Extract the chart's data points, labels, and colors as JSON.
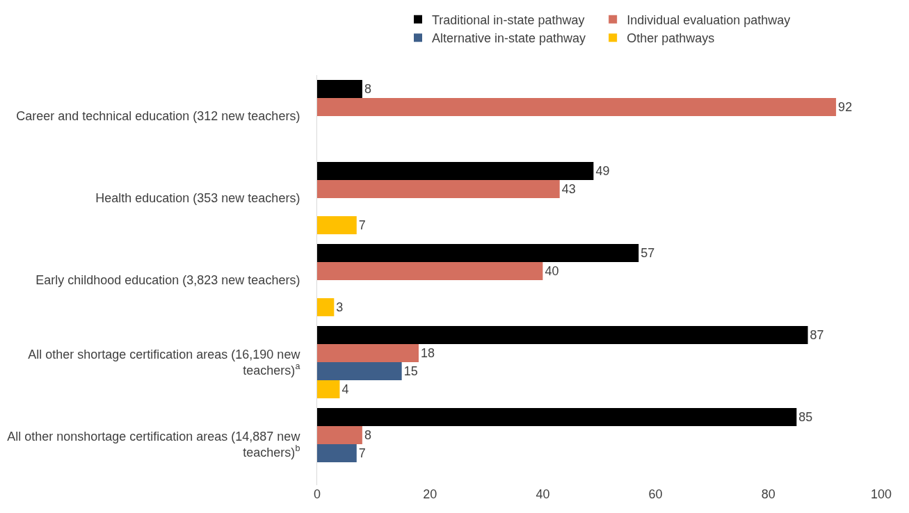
{
  "chart_data": {
    "type": "bar",
    "orientation": "horizontal",
    "categories": [
      "Career and technical education (312 new teachers)",
      "Health education (353 new teachers)",
      "Early childhood education (3,823 new teachers)",
      "All other shortage certification areas (16,190 new teachers)$^{a}$",
      "All other nonshortage certification areas (14,887 new teachers)$^{b}$"
    ],
    "series": [
      {
        "name": "Traditional in-state pathway",
        "color": "#000000",
        "values": [
          8,
          49,
          57,
          87,
          85
        ]
      },
      {
        "name": "Individual evaluation pathway",
        "color": "#d46f5f",
        "values": [
          92,
          43,
          40,
          18,
          8
        ]
      },
      {
        "name": "Alternative in-state pathway",
        "color": "#3e5f8a",
        "values": [
          null,
          null,
          null,
          15,
          7
        ]
      },
      {
        "name": "Other pathways",
        "color": "#ffc000",
        "values": [
          null,
          7,
          3,
          4,
          null
        ]
      }
    ],
    "xlim": [
      0,
      100
    ],
    "xticks": [
      0,
      20,
      40,
      60,
      80,
      100
    ],
    "grid": false,
    "legend": "top",
    "data_labels": true
  }
}
